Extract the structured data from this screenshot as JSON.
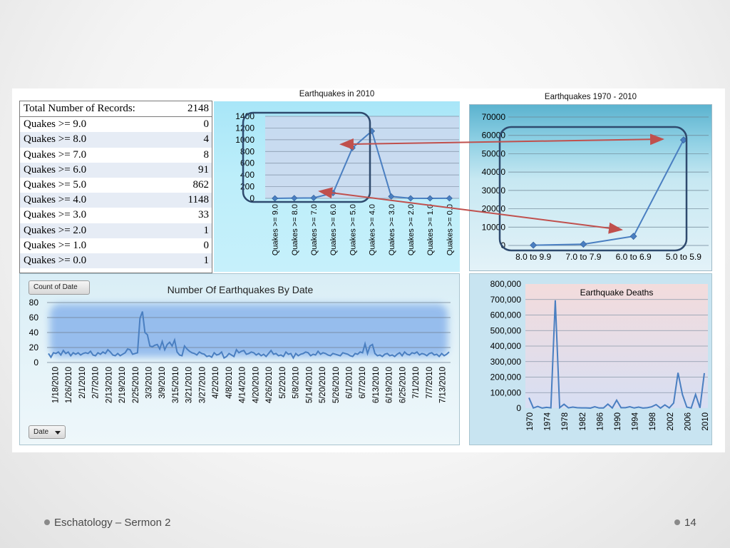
{
  "slide": {
    "footer_left": "Eschatology – Sermon 2",
    "slide_number": "14"
  },
  "table": {
    "header": {
      "label": "Total Number of Records:",
      "value": "2148"
    },
    "rows": [
      {
        "label": "Quakes >= 9.0",
        "value": "0"
      },
      {
        "label": "Quakes >= 8.0",
        "value": "4"
      },
      {
        "label": "Quakes >= 7.0",
        "value": "8"
      },
      {
        "label": "Quakes >= 6.0",
        "value": "91"
      },
      {
        "label": "Quakes >= 5.0",
        "value": "862"
      },
      {
        "label": "Quakes >= 4.0",
        "value": "1148"
      },
      {
        "label": "Quakes >= 3.0",
        "value": "33"
      },
      {
        "label": "Quakes >= 2.0",
        "value": "1"
      },
      {
        "label": "Quakes >= 1.0",
        "value": "0"
      },
      {
        "label": "Quakes >= 0.0",
        "value": "1"
      }
    ]
  },
  "controls": {
    "count_button": "Count of Date",
    "date_button": "Date"
  },
  "colors": {
    "line": "#4a7fc1",
    "arrow": "#c0504d",
    "highlight_box": "#2f4a6e"
  },
  "chart_data": [
    {
      "id": "quakes-2010",
      "type": "line",
      "title": "Earthquakes in 2010",
      "categories": [
        "Quakes >= 9.0",
        "Quakes >= 8.0",
        "Quakes >= 7.0",
        "Quakes >= 6.0",
        "Quakes >= 5.0",
        "Quakes >= 4.0",
        "Quakes >= 3.0",
        "Quakes >= 2.0",
        "Quakes >= 1.0",
        "Quakes >= 0.0"
      ],
      "values": [
        0,
        4,
        8,
        91,
        862,
        1148,
        33,
        1,
        0,
        1
      ],
      "ylim": [
        0,
        1400
      ],
      "yticks": [
        0,
        200,
        400,
        600,
        800,
        1000,
        1200,
        1400
      ],
      "grid": true,
      "markers": "diamond"
    },
    {
      "id": "quakes-1970-2010",
      "type": "line",
      "title": "Earthquakes 1970 - 2010",
      "categories": [
        "8.0 to 9.9",
        "7.0 to 7.9",
        "6.0 to 6.9",
        "5.0 to 5.9"
      ],
      "values": [
        150,
        700,
        5000,
        57500
      ],
      "ylim": [
        0,
        70000
      ],
      "yticks": [
        0,
        10000,
        20000,
        30000,
        40000,
        50000,
        60000,
        70000
      ],
      "grid": true,
      "markers": "diamond"
    },
    {
      "id": "quakes-by-date",
      "type": "line",
      "title": "Number Of Earthquakes By Date",
      "x_tick_labels": [
        "1/18/2010",
        "1/26/2010",
        "2/1/2010",
        "2/7/2010",
        "2/13/2010",
        "2/19/2010",
        "2/25/2010",
        "3/3/2010",
        "3/9/2010",
        "3/15/2010",
        "3/21/2010",
        "3/27/2010",
        "4/2/2010",
        "4/8/2010",
        "4/14/2010",
        "4/20/2010",
        "4/26/2010",
        "5/2/2010",
        "5/8/2010",
        "5/14/2010",
        "5/20/2010",
        "5/26/2010",
        "6/1/2010",
        "6/7/2010",
        "6/13/2010",
        "6/19/2010",
        "6/25/2010",
        "7/1/2010",
        "7/7/2010",
        "7/13/2010"
      ],
      "values": [
        12,
        7,
        13,
        12,
        14,
        10,
        16,
        12,
        14,
        9,
        13,
        11,
        13,
        10,
        12,
        13,
        12,
        15,
        10,
        9,
        13,
        11,
        14,
        12,
        17,
        14,
        10,
        9,
        12,
        9,
        11,
        13,
        18,
        17,
        11,
        12,
        13,
        59,
        68,
        40,
        37,
        22,
        21,
        23,
        24,
        18,
        28,
        17,
        24,
        27,
        22,
        30,
        14,
        10,
        9,
        22,
        18,
        15,
        13,
        12,
        10,
        14,
        12,
        11,
        8,
        9,
        7,
        13,
        10,
        11,
        14,
        6,
        8,
        12,
        10,
        8,
        17,
        13,
        15,
        16,
        11,
        12,
        14,
        13,
        10,
        12,
        9,
        11,
        8,
        12,
        16,
        11,
        12,
        9,
        10,
        8,
        14,
        11,
        12,
        6,
        12,
        9,
        11,
        12,
        14,
        13,
        9,
        11,
        10,
        15,
        11,
        13,
        12,
        10,
        9,
        12,
        11,
        10,
        9,
        13,
        12,
        11,
        9,
        8,
        12,
        11,
        14,
        13,
        25,
        12,
        22,
        24,
        12,
        9,
        10,
        8,
        11,
        12,
        9,
        10,
        8,
        11,
        13,
        9,
        14,
        11,
        10,
        13,
        12,
        14,
        10,
        12,
        11,
        9,
        12,
        13,
        10,
        11,
        8,
        12,
        9,
        11,
        14
      ],
      "ylim": [
        0,
        80
      ],
      "yticks": [
        0,
        20,
        40,
        60,
        80
      ],
      "grid": true
    },
    {
      "id": "quake-deaths",
      "type": "line",
      "title": "Earthquake Deaths",
      "x": [
        1970,
        1971,
        1972,
        1973,
        1974,
        1975,
        1976,
        1977,
        1978,
        1979,
        1980,
        1981,
        1982,
        1983,
        1984,
        1985,
        1986,
        1987,
        1988,
        1989,
        1990,
        1991,
        1992,
        1993,
        1994,
        1995,
        1996,
        1997,
        1998,
        1999,
        2000,
        2001,
        2002,
        2003,
        2004,
        2005,
        2006,
        2007,
        2008,
        2009,
        2010
      ],
      "values": [
        67000,
        1000,
        11000,
        500,
        5000,
        2000,
        695000,
        3000,
        25000,
        2000,
        7000,
        3000,
        2000,
        2000,
        300,
        9000,
        1000,
        1000,
        26000,
        1000,
        51000,
        3000,
        3000,
        9000,
        1000,
        7000,
        500,
        3000,
        9000,
        23000,
        200,
        21000,
        1700,
        33000,
        228000,
        88000,
        6600,
        700,
        88000,
        1800,
        226000
      ],
      "x_tick_labels": [
        "1970",
        "1974",
        "1978",
        "1982",
        "1986",
        "1990",
        "1994",
        "1998",
        "2002",
        "2006",
        "2010"
      ],
      "ylim": [
        0,
        800000
      ],
      "ytick_labels": [
        "0",
        "100,000",
        "200,000",
        "300,000",
        "400,000",
        "500,000",
        "600,000",
        "700,000",
        "800,000"
      ],
      "grid": true
    }
  ]
}
